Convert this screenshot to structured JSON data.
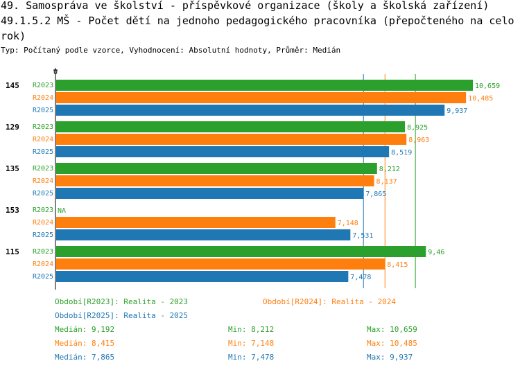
{
  "header": {
    "title_line1": "49. Samospráva ve školství - příspěvkové organizace (školy a školská zařízení)",
    "title_line2": "49.1.5.2 MŠ - Počet dětí na jednoho pedagogického pracovníka (přepočteného na celorok)",
    "subtitle": "Typ: Počítaný podle vzorce, Vyhodnocení: Absolutní hodnoty, Průměr: Medián"
  },
  "colors": {
    "R2023": "#2ca02c",
    "R2024": "#ff7f0e",
    "R2025": "#1f77b4",
    "axis": "#000000",
    "grid": "#cccccc"
  },
  "chart_data": {
    "type": "bar",
    "orientation": "horizontal",
    "axis_zero_label": "0",
    "xlim": [
      0,
      10.659
    ],
    "categories": [
      "145",
      "129",
      "135",
      "153",
      "115"
    ],
    "series": [
      {
        "name": "R2023",
        "values": [
          10.659,
          8.925,
          8.212,
          null,
          9.46
        ],
        "labels": [
          "10,659",
          "8,925",
          "8,212",
          "NA",
          "9,46"
        ]
      },
      {
        "name": "R2024",
        "values": [
          10.485,
          8.963,
          8.137,
          7.148,
          8.415
        ],
        "labels": [
          "10,485",
          "8,963",
          "8,137",
          "7,148",
          "8,415"
        ]
      },
      {
        "name": "R2025",
        "values": [
          9.937,
          8.519,
          7.865,
          7.531,
          7.478
        ],
        "labels": [
          "9,937",
          "8,519",
          "7,865",
          "7,531",
          "7,478"
        ]
      }
    ],
    "median_lines": {
      "R2023": 9.192,
      "R2024": 8.415,
      "R2025": 7.865
    }
  },
  "legend": {
    "entries": [
      {
        "series": "R2023",
        "label": "Období[R2023]: Realita - 2023"
      },
      {
        "series": "R2024",
        "label": "Období[R2024]: Realita - 2024"
      },
      {
        "series": "R2025",
        "label": "Období[R2025]: Realita - 2025"
      }
    ],
    "stats": [
      {
        "series": "R2023",
        "median": "Medián: 9,192",
        "min": "Min: 8,212",
        "max": "Max: 10,659"
      },
      {
        "series": "R2024",
        "median": "Medián: 8,415",
        "min": "Min: 7,148",
        "max": "Max: 10,485"
      },
      {
        "series": "R2025",
        "median": "Medián: 7,865",
        "min": "Min: 7,478",
        "max": "Max: 9,937"
      }
    ]
  }
}
